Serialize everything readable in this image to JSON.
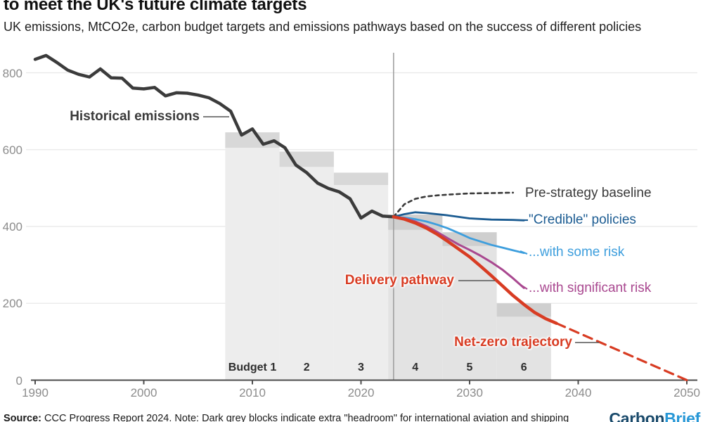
{
  "header": {
    "title": "to meet the UK's future climate targets",
    "subtitle": "UK emissions, MtCO2e, carbon budget targets and emissions pathways based on the success of different policies"
  },
  "footer": {
    "source_prefix": "Source:",
    "source_text": " CCC Progress Report 2024. Note: Dark grey blocks indicate extra \"headroom\" for international aviation and shipping",
    "logo": {
      "part1": "Carbon",
      "part2": "Brief",
      "color1": "#1a4a6b",
      "color2": "#2797d6"
    }
  },
  "chart_data": {
    "type": "line",
    "title": "to meet the UK's future climate targets",
    "xlabel": "",
    "ylabel": "MtCO2e",
    "grid": true,
    "x_domain": [
      1990,
      2050
    ],
    "ylim": [
      0,
      880
    ],
    "x_ticks": [
      1990,
      2000,
      2010,
      2020,
      2030,
      2040,
      2050
    ],
    "y_ticks": [
      0,
      200,
      400,
      600,
      800
    ],
    "current_year_marker": 2023,
    "colors": {
      "historical": "#3b3b3b",
      "baseline": "#3a3a3a",
      "credible": "#1c5c92",
      "some_risk": "#3d9edd",
      "significant_risk": "#a94890",
      "delivery": "#d83c23",
      "netzero": "#d83c23",
      "grid": "#e8e8e8",
      "axis": "#4d4d4d",
      "budget_light": "#ededed",
      "budget_light_future": "#e3e3e3",
      "budget_dark": "#d8d8d8",
      "budget_dark_future": "#cfcfcf",
      "marker_line": "#9a9a9a",
      "leader": "#555555"
    },
    "budgets": [
      {
        "label": "Budget 1",
        "start": 2007.5,
        "end": 2012.5,
        "level": 605,
        "headroom": 645,
        "future": false
      },
      {
        "label": "2",
        "start": 2012.5,
        "end": 2017.5,
        "level": 555,
        "headroom": 595,
        "future": false
      },
      {
        "label": "3",
        "start": 2017.5,
        "end": 2022.5,
        "level": 508,
        "headroom": 540,
        "future": false
      },
      {
        "label": "4",
        "start": 2022.5,
        "end": 2027.5,
        "level": 391,
        "headroom": 431,
        "future": true
      },
      {
        "label": "5",
        "start": 2027.5,
        "end": 2032.5,
        "level": 349,
        "headroom": 385,
        "future": true
      },
      {
        "label": "6",
        "start": 2032.5,
        "end": 2037.5,
        "level": 165,
        "headroom": 200,
        "future": true
      }
    ],
    "series": [
      {
        "name": "Historical emissions",
        "key": "historical",
        "style": "solid",
        "width": 4.5,
        "points": [
          [
            1990,
            835
          ],
          [
            1991,
            845
          ],
          [
            1992,
            827
          ],
          [
            1993,
            807
          ],
          [
            1994,
            796
          ],
          [
            1995,
            789
          ],
          [
            1996,
            810
          ],
          [
            1997,
            787
          ],
          [
            1998,
            786
          ],
          [
            1999,
            760
          ],
          [
            2000,
            758
          ],
          [
            2001,
            762
          ],
          [
            2002,
            740
          ],
          [
            2003,
            748
          ],
          [
            2004,
            747
          ],
          [
            2005,
            742
          ],
          [
            2006,
            735
          ],
          [
            2007,
            720
          ],
          [
            2008,
            700
          ],
          [
            2009,
            638
          ],
          [
            2010,
            654
          ],
          [
            2011,
            614
          ],
          [
            2012,
            623
          ],
          [
            2013,
            605
          ],
          [
            2014,
            560
          ],
          [
            2015,
            540
          ],
          [
            2016,
            513
          ],
          [
            2017,
            499
          ],
          [
            2018,
            490
          ],
          [
            2019,
            472
          ],
          [
            2020,
            422
          ],
          [
            2021,
            440
          ],
          [
            2022,
            427
          ],
          [
            2023,
            425
          ]
        ]
      },
      {
        "name": "Pre-strategy baseline",
        "key": "baseline",
        "style": "dashed",
        "dash": "5,5",
        "width": 2.6,
        "points": [
          [
            2023,
            425
          ],
          [
            2024,
            458
          ],
          [
            2025,
            472
          ],
          [
            2026,
            478
          ],
          [
            2027,
            481
          ],
          [
            2028,
            483
          ],
          [
            2030,
            486
          ],
          [
            2032,
            487
          ],
          [
            2034,
            488
          ]
        ]
      },
      {
        "name": "\"Credible\" policies",
        "key": "credible",
        "style": "solid",
        "width": 2.8,
        "points": [
          [
            2023,
            425
          ],
          [
            2024,
            432
          ],
          [
            2025,
            437
          ],
          [
            2026,
            435
          ],
          [
            2028,
            429
          ],
          [
            2030,
            421
          ],
          [
            2032,
            418
          ],
          [
            2034,
            417
          ],
          [
            2035,
            416
          ]
        ]
      },
      {
        "name": "...with some risk",
        "key": "some_risk",
        "style": "solid",
        "width": 2.8,
        "points": [
          [
            2023,
            425
          ],
          [
            2024,
            423
          ],
          [
            2025,
            419
          ],
          [
            2026,
            413
          ],
          [
            2027,
            405
          ],
          [
            2028,
            395
          ],
          [
            2029,
            383
          ],
          [
            2030,
            370
          ],
          [
            2031,
            361
          ],
          [
            2032,
            352
          ],
          [
            2033,
            345
          ],
          [
            2034,
            338
          ],
          [
            2035,
            331
          ]
        ]
      },
      {
        "name": "...with significant risk",
        "key": "significant_risk",
        "style": "solid",
        "width": 3,
        "points": [
          [
            2023,
            425
          ],
          [
            2024,
            421
          ],
          [
            2025,
            413
          ],
          [
            2026,
            401
          ],
          [
            2027,
            386
          ],
          [
            2028,
            369
          ],
          [
            2029,
            353
          ],
          [
            2030,
            339
          ],
          [
            2031,
            324
          ],
          [
            2032,
            307
          ],
          [
            2033,
            288
          ],
          [
            2034,
            265
          ],
          [
            2035,
            240
          ]
        ]
      },
      {
        "name": "Net-zero trajectory",
        "key": "netzero",
        "style": "dashed",
        "dash": "13,8",
        "width": 3.2,
        "points": [
          [
            2038,
            148
          ],
          [
            2050,
            0
          ]
        ]
      },
      {
        "name": "Delivery pathway",
        "key": "delivery",
        "style": "solid",
        "width": 4.5,
        "points": [
          [
            2023,
            425
          ],
          [
            2024,
            419
          ],
          [
            2025,
            409
          ],
          [
            2026,
            396
          ],
          [
            2027,
            380
          ],
          [
            2028,
            361
          ],
          [
            2029,
            341
          ],
          [
            2030,
            321
          ],
          [
            2031,
            297
          ],
          [
            2032,
            272
          ],
          [
            2033,
            246
          ],
          [
            2034,
            220
          ],
          [
            2035,
            197
          ],
          [
            2036,
            176
          ],
          [
            2037,
            160
          ],
          [
            2038,
            148
          ]
        ]
      }
    ],
    "annotations": {
      "historical": "Historical emissions",
      "baseline": "Pre-strategy baseline",
      "credible": "\"Credible\" policies",
      "some_risk": "...with some risk",
      "significant_risk": "...with significant risk",
      "delivery": "Delivery pathway",
      "netzero": "Net-zero trajectory"
    }
  }
}
